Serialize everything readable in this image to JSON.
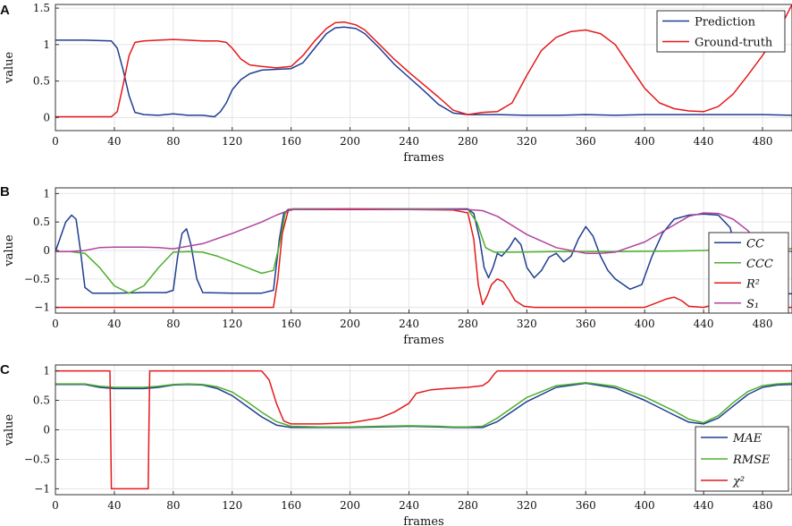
{
  "colors": {
    "blue": "#1f3e91",
    "red": "#e41a1c",
    "green": "#4daf2c",
    "magenta": "#b0459e",
    "grid": "#e4e4e4"
  },
  "chart_data": [
    {
      "type": "line",
      "panel_label": "A",
      "xlabel": "frames",
      "ylabel": "value",
      "xlim": [
        0,
        500
      ],
      "ylim": [
        -0.18,
        1.55
      ],
      "xticks": [
        0,
        40,
        80,
        120,
        160,
        200,
        240,
        280,
        320,
        360,
        400,
        440,
        480
      ],
      "yticks": [
        0,
        0.5,
        1,
        1.5
      ],
      "ytick_labels": [
        "0",
        "0.5",
        "1",
        "1.5"
      ],
      "grid": true,
      "legend_position": "top-right",
      "series": [
        {
          "name": "Prediction",
          "color": "#1f3e91",
          "x": [
            0,
            20,
            38,
            42,
            46,
            50,
            54,
            60,
            70,
            80,
            90,
            100,
            108,
            112,
            116,
            120,
            126,
            132,
            140,
            150,
            160,
            168,
            176,
            184,
            190,
            196,
            204,
            210,
            220,
            230,
            240,
            250,
            260,
            270,
            280,
            290,
            300,
            320,
            340,
            360,
            380,
            400,
            420,
            440,
            460,
            480,
            500
          ],
          "values": [
            1.06,
            1.06,
            1.05,
            0.95,
            0.65,
            0.3,
            0.07,
            0.04,
            0.03,
            0.05,
            0.03,
            0.03,
            0.01,
            0.08,
            0.2,
            0.38,
            0.52,
            0.6,
            0.65,
            0.66,
            0.67,
            0.75,
            0.95,
            1.15,
            1.23,
            1.24,
            1.22,
            1.15,
            0.95,
            0.73,
            0.55,
            0.37,
            0.18,
            0.06,
            0.04,
            0.04,
            0.04,
            0.03,
            0.03,
            0.04,
            0.03,
            0.04,
            0.04,
            0.04,
            0.04,
            0.04,
            0.03
          ]
        },
        {
          "name": "Ground-truth",
          "color": "#e41a1c",
          "x": [
            0,
            20,
            38,
            42,
            46,
            50,
            54,
            60,
            70,
            80,
            90,
            100,
            110,
            116,
            120,
            126,
            132,
            140,
            150,
            160,
            168,
            176,
            184,
            190,
            196,
            204,
            210,
            220,
            230,
            240,
            250,
            260,
            270,
            280,
            290,
            300,
            310,
            320,
            330,
            340,
            350,
            360,
            370,
            380,
            390,
            400,
            410,
            420,
            430,
            440,
            450,
            460,
            470,
            480,
            490,
            500
          ],
          "values": [
            0.01,
            0.01,
            0.01,
            0.08,
            0.45,
            0.85,
            1.03,
            1.05,
            1.06,
            1.07,
            1.06,
            1.05,
            1.05,
            1.03,
            0.95,
            0.8,
            0.72,
            0.7,
            0.68,
            0.7,
            0.85,
            1.05,
            1.22,
            1.3,
            1.31,
            1.27,
            1.2,
            1.0,
            0.8,
            0.62,
            0.45,
            0.28,
            0.1,
            0.04,
            0.07,
            0.08,
            0.2,
            0.58,
            0.92,
            1.1,
            1.18,
            1.2,
            1.15,
            1.0,
            0.7,
            0.4,
            0.2,
            0.12,
            0.09,
            0.08,
            0.15,
            0.32,
            0.58,
            0.85,
            1.15,
            1.55
          ]
        }
      ]
    },
    {
      "type": "line",
      "panel_label": "B",
      "xlabel": "frames",
      "ylabel": "value",
      "xlim": [
        0,
        500
      ],
      "ylim": [
        -1.1,
        1.1
      ],
      "xticks": [
        0,
        40,
        80,
        120,
        160,
        200,
        240,
        280,
        320,
        360,
        400,
        440,
        480
      ],
      "yticks": [
        -1,
        -0.5,
        0,
        0.5,
        1
      ],
      "ytick_labels": [
        "−1",
        "−0.5",
        "0",
        "0.5",
        "1"
      ],
      "grid": true,
      "legend_position": "bottom-right",
      "series": [
        {
          "name": "CC",
          "color": "#1f3e91",
          "x": [
            0,
            3,
            7,
            11,
            14,
            17,
            20,
            25,
            40,
            60,
            75,
            80,
            83,
            86,
            89,
            92,
            96,
            100,
            120,
            140,
            148,
            152,
            155,
            158,
            162,
            200,
            240,
            280,
            284,
            288,
            291,
            294,
            297,
            300,
            303,
            308,
            312,
            316,
            320,
            325,
            330,
            335,
            340,
            345,
            350,
            355,
            360,
            365,
            370,
            375,
            380,
            390,
            398,
            405,
            412,
            420,
            430,
            440,
            450,
            458,
            462,
            466,
            470,
            480,
            490,
            500
          ],
          "values": [
            -0.02,
            0.2,
            0.5,
            0.62,
            0.55,
            0.0,
            -0.65,
            -0.75,
            -0.75,
            -0.74,
            -0.74,
            -0.7,
            -0.1,
            0.3,
            0.38,
            0.1,
            -0.5,
            -0.74,
            -0.75,
            -0.75,
            -0.7,
            0.2,
            0.65,
            0.72,
            0.73,
            0.73,
            0.73,
            0.73,
            0.65,
            0.2,
            -0.3,
            -0.48,
            -0.3,
            -0.05,
            -0.1,
            0.05,
            0.22,
            0.1,
            -0.3,
            -0.48,
            -0.35,
            -0.12,
            -0.05,
            -0.2,
            -0.1,
            0.2,
            0.42,
            0.25,
            -0.1,
            -0.35,
            -0.5,
            -0.68,
            -0.6,
            -0.1,
            0.3,
            0.55,
            0.62,
            0.64,
            0.62,
            0.4,
            0.0,
            -0.4,
            -0.75,
            -0.76,
            -0.76,
            -0.76
          ]
        },
        {
          "name": "CCC",
          "color": "#4daf2c",
          "x": [
            0,
            10,
            20,
            30,
            40,
            50,
            60,
            70,
            80,
            90,
            100,
            110,
            120,
            130,
            140,
            148,
            152,
            156,
            160,
            200,
            240,
            280,
            286,
            292,
            298,
            310,
            340,
            380,
            420,
            440,
            460,
            470,
            480,
            500
          ],
          "values": [
            -0.02,
            -0.02,
            -0.05,
            -0.3,
            -0.62,
            -0.75,
            -0.62,
            -0.3,
            -0.03,
            -0.02,
            -0.03,
            -0.1,
            -0.2,
            -0.3,
            -0.4,
            -0.35,
            0.1,
            0.65,
            0.73,
            0.73,
            0.73,
            0.72,
            0.5,
            0.05,
            -0.03,
            -0.03,
            -0.02,
            -0.02,
            -0.01,
            0.0,
            0.02,
            0.03,
            0.03,
            0.03
          ]
        },
        {
          "name": "R²",
          "color": "#e41a1c",
          "x": [
            0,
            60,
            120,
            148,
            151,
            154,
            158,
            162,
            200,
            240,
            270,
            280,
            284,
            287,
            290,
            293,
            296,
            300,
            304,
            308,
            312,
            318,
            325,
            340,
            360,
            380,
            400,
            410,
            415,
            420,
            425,
            430,
            440,
            450,
            460,
            470,
            480,
            490,
            500
          ],
          "values": [
            -1.0,
            -1.0,
            -1.0,
            -1.0,
            -0.5,
            0.3,
            0.7,
            0.72,
            0.72,
            0.72,
            0.71,
            0.66,
            0.2,
            -0.6,
            -0.95,
            -0.8,
            -0.6,
            -0.5,
            -0.55,
            -0.7,
            -0.88,
            -0.98,
            -1.0,
            -1.0,
            -1.0,
            -1.0,
            -1.0,
            -0.9,
            -0.85,
            -0.82,
            -0.88,
            -0.98,
            -1.0,
            -0.93,
            -0.97,
            -1.0,
            -1.0,
            -1.0,
            -1.0
          ]
        },
        {
          "name": "S₁",
          "color": "#b0459e",
          "x": [
            0,
            10,
            20,
            30,
            40,
            60,
            70,
            80,
            100,
            120,
            140,
            150,
            160,
            200,
            240,
            270,
            280,
            290,
            300,
            320,
            340,
            360,
            370,
            380,
            400,
            420,
            430,
            440,
            450,
            460,
            470,
            480,
            500
          ],
          "values": [
            -0.02,
            -0.02,
            0.0,
            0.05,
            0.06,
            0.06,
            0.05,
            0.03,
            0.12,
            0.3,
            0.5,
            0.62,
            0.72,
            0.73,
            0.72,
            0.72,
            0.72,
            0.7,
            0.6,
            0.28,
            0.05,
            -0.05,
            -0.05,
            -0.03,
            0.15,
            0.45,
            0.6,
            0.66,
            0.65,
            0.55,
            0.35,
            0.05,
            -0.02
          ]
        }
      ]
    },
    {
      "type": "line",
      "panel_label": "C",
      "xlabel": "frames",
      "ylabel": "value",
      "xlim": [
        0,
        500
      ],
      "ylim": [
        -1.1,
        1.1
      ],
      "xticks": [
        0,
        40,
        80,
        120,
        160,
        200,
        240,
        280,
        320,
        360,
        400,
        440,
        480
      ],
      "yticks": [
        -1,
        -0.5,
        0,
        0.5,
        1
      ],
      "ytick_labels": [
        "−1",
        "−0.5",
        "0",
        "0.5",
        "1"
      ],
      "grid": true,
      "legend_position": "bottom-right",
      "series": [
        {
          "name": "MAE",
          "color": "#1f3e91",
          "x": [
            0,
            20,
            30,
            40,
            50,
            60,
            70,
            80,
            90,
            100,
            110,
            120,
            130,
            140,
            150,
            160,
            180,
            200,
            220,
            240,
            260,
            270,
            280,
            290,
            300,
            320,
            340,
            360,
            380,
            400,
            420,
            430,
            440,
            450,
            460,
            470,
            480,
            490,
            500
          ],
          "values": [
            0.77,
            0.77,
            0.72,
            0.7,
            0.7,
            0.7,
            0.72,
            0.76,
            0.77,
            0.76,
            0.7,
            0.58,
            0.4,
            0.22,
            0.08,
            0.04,
            0.04,
            0.04,
            0.05,
            0.06,
            0.05,
            0.04,
            0.04,
            0.04,
            0.14,
            0.48,
            0.72,
            0.79,
            0.71,
            0.5,
            0.25,
            0.13,
            0.1,
            0.2,
            0.4,
            0.6,
            0.72,
            0.76,
            0.77
          ]
        },
        {
          "name": "RMSE",
          "color": "#4daf2c",
          "x": [
            0,
            20,
            30,
            40,
            50,
            60,
            70,
            80,
            90,
            100,
            110,
            120,
            130,
            140,
            150,
            160,
            180,
            200,
            220,
            240,
            260,
            270,
            280,
            290,
            300,
            320,
            340,
            360,
            380,
            400,
            420,
            430,
            440,
            450,
            460,
            470,
            480,
            490,
            500
          ],
          "values": [
            0.78,
            0.78,
            0.74,
            0.72,
            0.72,
            0.72,
            0.74,
            0.77,
            0.78,
            0.77,
            0.73,
            0.64,
            0.48,
            0.3,
            0.14,
            0.06,
            0.05,
            0.05,
            0.06,
            0.07,
            0.06,
            0.05,
            0.05,
            0.06,
            0.2,
            0.55,
            0.75,
            0.8,
            0.74,
            0.56,
            0.32,
            0.18,
            0.12,
            0.24,
            0.46,
            0.65,
            0.75,
            0.78,
            0.79
          ]
        },
        {
          "name": "χ²",
          "color": "#e41a1c",
          "x": [
            0,
            37,
            37.5,
            38,
            63,
            63.5,
            64,
            140,
            145,
            150,
            155,
            160,
            180,
            200,
            220,
            230,
            240,
            245,
            255,
            265,
            280,
            290,
            294,
            298,
            300,
            320,
            400,
            500
          ],
          "values": [
            1.0,
            1.0,
            0.0,
            -1.0,
            -1.0,
            0.0,
            1.0,
            1.0,
            0.85,
            0.45,
            0.15,
            0.1,
            0.1,
            0.12,
            0.2,
            0.3,
            0.45,
            0.62,
            0.68,
            0.7,
            0.72,
            0.75,
            0.82,
            0.95,
            1.0,
            1.0,
            1.0,
            1.0
          ]
        }
      ]
    }
  ]
}
